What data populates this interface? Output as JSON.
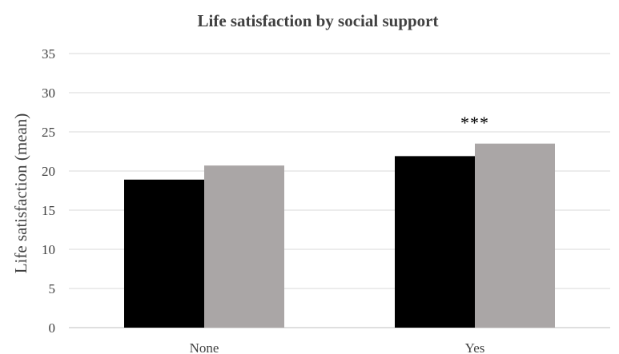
{
  "chart_data": {
    "type": "bar",
    "title": "Life satisfaction by social support",
    "xlabel": "",
    "ylabel": "Life satisfaction (mean)",
    "ylim": [
      0,
      35
    ],
    "yticks": [
      0,
      5,
      10,
      15,
      20,
      25,
      30,
      35
    ],
    "grid": true,
    "legend": "none",
    "categories": [
      "None",
      "Yes"
    ],
    "series": [
      {
        "values": [
          18.9,
          21.9
        ],
        "color": "#000000"
      },
      {
        "values": [
          20.7,
          23.5
        ],
        "color": "#aaa6a6"
      }
    ],
    "annotations": [
      {
        "text": "***",
        "category": "Yes",
        "y": 26.2
      }
    ]
  }
}
